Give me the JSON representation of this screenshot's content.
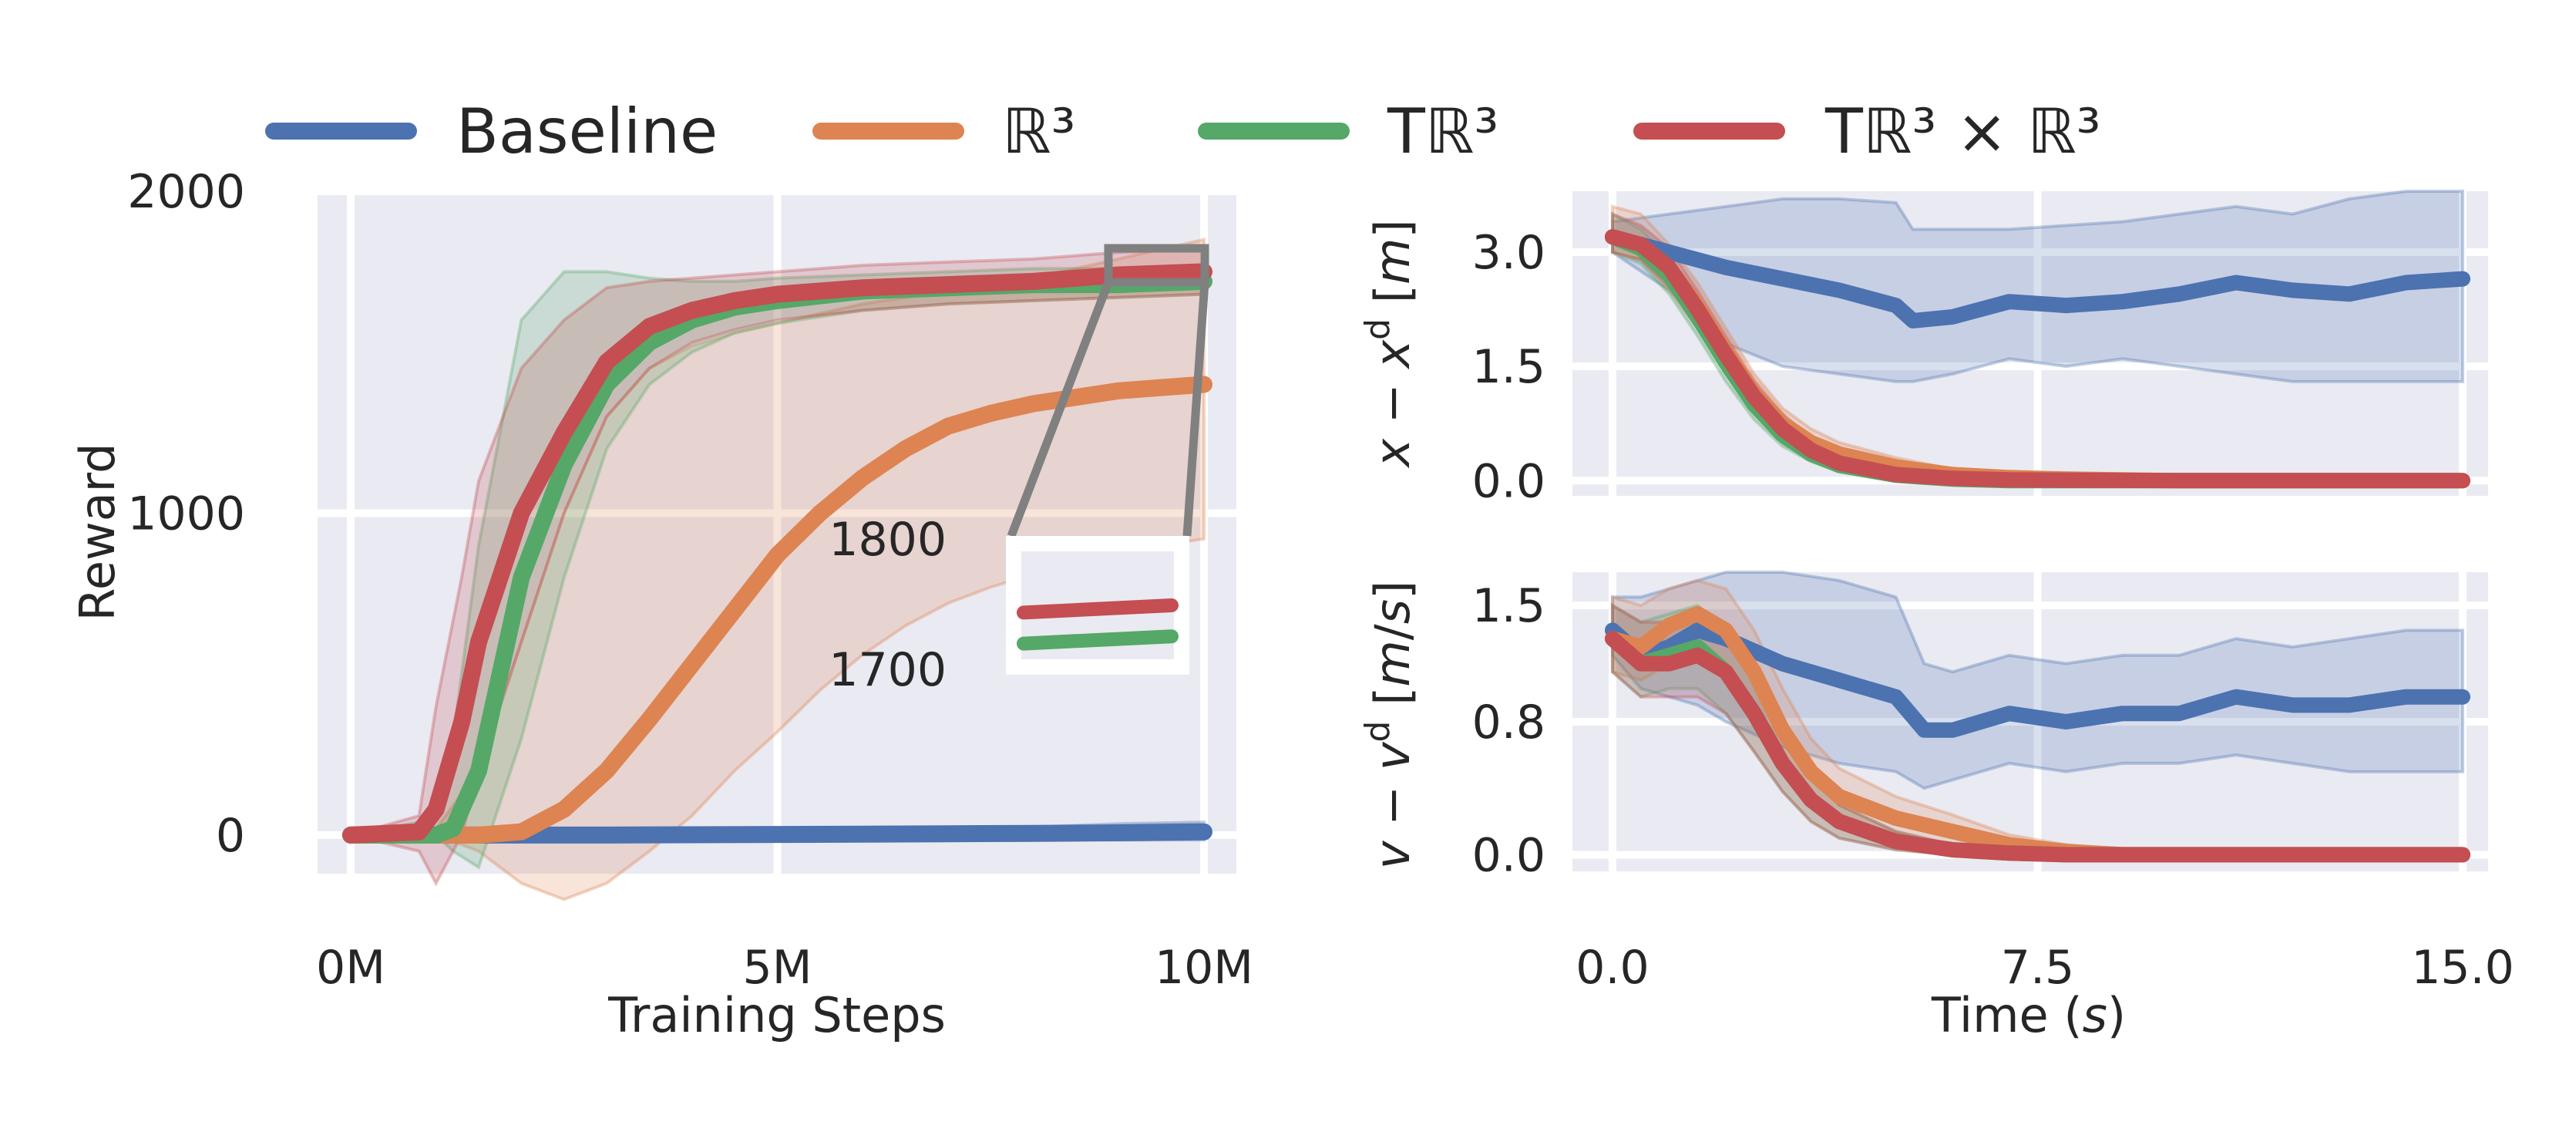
{
  "legend": {
    "placement": "top",
    "entries": [
      {
        "label": "Baseline",
        "color": "#4c72b0"
      },
      {
        "label": "ℝ³",
        "color": "#dd8452"
      },
      {
        "label": "Tℝ³",
        "color": "#55a868"
      },
      {
        "label": "Tℝ³ × ℝ³",
        "color": "#c44e52"
      }
    ]
  },
  "chart_data": [
    {
      "type": "line",
      "xlabel": "Training Steps",
      "ylabel": "Reward",
      "xlim": [
        0,
        10
      ],
      "ylim": [
        -120,
        2000
      ],
      "xticks": [
        0,
        5,
        10
      ],
      "xtick_labels": [
        "0M",
        "5M",
        "10M"
      ],
      "yticks": [
        0,
        1000,
        2000
      ],
      "ytick_labels": [
        "0",
        "1000",
        "2000"
      ],
      "grid": true,
      "series": [
        {
          "name": "Baseline",
          "color": "#4c72b0",
          "x": [
            0,
            1,
            2,
            3,
            4,
            5,
            6,
            7,
            8,
            9,
            10
          ],
          "y": [
            0,
            0,
            0,
            0,
            1,
            2,
            3,
            4,
            5,
            7,
            10
          ],
          "lower": [
            -5,
            -5,
            -5,
            -5,
            -5,
            -5,
            -5,
            -10,
            -10,
            -15,
            -15
          ],
          "upper": [
            5,
            5,
            5,
            5,
            8,
            10,
            15,
            20,
            25,
            35,
            40
          ]
        },
        {
          "name": "ℝ³",
          "color": "#dd8452",
          "x": [
            0,
            1,
            1.5,
            2,
            2.5,
            3,
            3.5,
            4,
            4.5,
            5,
            5.5,
            6,
            6.5,
            7,
            7.5,
            8,
            8.5,
            9,
            9.5,
            10
          ],
          "y": [
            0,
            0,
            0,
            10,
            80,
            200,
            360,
            530,
            700,
            870,
            1000,
            1110,
            1200,
            1270,
            1310,
            1340,
            1360,
            1380,
            1390,
            1400
          ],
          "lower": [
            0,
            0,
            -50,
            -150,
            -200,
            -150,
            -50,
            60,
            200,
            320,
            450,
            560,
            650,
            720,
            770,
            810,
            850,
            880,
            900,
            920
          ],
          "upper": [
            0,
            20,
            200,
            600,
            1000,
            1300,
            1450,
            1520,
            1560,
            1590,
            1620,
            1650,
            1670,
            1690,
            1710,
            1730,
            1760,
            1790,
            1820,
            1850
          ]
        },
        {
          "name": "Tℝ³",
          "color": "#55a868",
          "x": [
            0,
            1,
            1.2,
            1.5,
            2,
            2.5,
            3,
            3.5,
            4,
            4.5,
            5,
            6,
            7,
            8,
            9,
            10
          ],
          "y": [
            0,
            0,
            20,
            200,
            800,
            1150,
            1400,
            1530,
            1600,
            1640,
            1660,
            1690,
            1700,
            1710,
            1710,
            1720
          ],
          "lower": [
            0,
            0,
            -50,
            -100,
            300,
            800,
            1200,
            1400,
            1500,
            1560,
            1590,
            1630,
            1650,
            1660,
            1670,
            1680
          ],
          "upper": [
            0,
            50,
            300,
            900,
            1600,
            1750,
            1750,
            1730,
            1720,
            1720,
            1730,
            1740,
            1750,
            1760,
            1760,
            1770
          ]
        },
        {
          "name": "Tℝ³ × ℝ³",
          "color": "#c44e52",
          "x": [
            0,
            0.8,
            1,
            1.3,
            1.5,
            2,
            2.5,
            3,
            3.5,
            4,
            4.5,
            5,
            6,
            7,
            8,
            9,
            10
          ],
          "y": [
            0,
            10,
            80,
            350,
            600,
            1000,
            1250,
            1470,
            1580,
            1630,
            1660,
            1680,
            1700,
            1710,
            1720,
            1740,
            1750
          ],
          "lower": [
            0,
            -50,
            -150,
            0,
            200,
            600,
            1000,
            1300,
            1450,
            1530,
            1570,
            1600,
            1630,
            1650,
            1660,
            1670,
            1680
          ],
          "upper": [
            0,
            60,
            400,
            800,
            1100,
            1450,
            1600,
            1700,
            1720,
            1730,
            1740,
            1750,
            1770,
            1780,
            1790,
            1810,
            1820
          ]
        }
      ],
      "inset": {
        "xlim": [
          9.3,
          10
        ],
        "ylim": [
          1700,
          1800
        ],
        "ytick_labels": [
          "1800",
          "1700"
        ]
      }
    },
    {
      "type": "line",
      "xlabel": "",
      "ylabel": "x − x^d [m]",
      "xlim": [
        0,
        15
      ],
      "ylim": [
        -0.2,
        3.8
      ],
      "yticks": [
        0,
        1.5,
        3
      ],
      "ytick_labels": [
        "0.0",
        "1.5",
        "3.0"
      ],
      "grid": true,
      "series": [
        {
          "name": "Baseline",
          "color": "#4c72b0",
          "x": [
            0,
            1,
            2,
            3,
            4,
            5,
            5.3,
            6,
            7,
            8,
            9,
            10,
            11,
            12,
            13,
            14,
            15
          ],
          "y": [
            3.2,
            3.0,
            2.8,
            2.65,
            2.5,
            2.3,
            2.1,
            2.15,
            2.35,
            2.3,
            2.35,
            2.45,
            2.6,
            2.5,
            2.45,
            2.6,
            2.65
          ],
          "lower": [
            3.0,
            2.5,
            1.8,
            1.5,
            1.4,
            1.3,
            1.3,
            1.4,
            1.6,
            1.5,
            1.6,
            1.5,
            1.4,
            1.3,
            1.3,
            1.3,
            1.3
          ],
          "upper": [
            3.4,
            3.5,
            3.6,
            3.7,
            3.7,
            3.65,
            3.3,
            3.3,
            3.3,
            3.35,
            3.4,
            3.5,
            3.6,
            3.5,
            3.7,
            3.8,
            3.8
          ]
        },
        {
          "name": "ℝ³",
          "color": "#dd8452",
          "x": [
            0,
            0.5,
            1,
            1.5,
            2,
            2.5,
            3,
            3.5,
            4,
            5,
            6,
            7,
            8,
            10,
            15
          ],
          "y": [
            3.2,
            3.1,
            2.8,
            2.3,
            1.7,
            1.15,
            0.75,
            0.5,
            0.35,
            0.18,
            0.08,
            0.04,
            0.02,
            0.0,
            0.0
          ],
          "lower": [
            3.0,
            2.9,
            2.5,
            2.0,
            1.4,
            0.9,
            0.55,
            0.35,
            0.22,
            0.08,
            0.03,
            0.01,
            0.0,
            0.0,
            0.0
          ],
          "upper": [
            3.6,
            3.5,
            3.1,
            2.6,
            2.0,
            1.4,
            0.95,
            0.68,
            0.5,
            0.3,
            0.15,
            0.08,
            0.04,
            0.02,
            0.02
          ]
        },
        {
          "name": "Tℝ³",
          "color": "#55a868",
          "x": [
            0,
            0.5,
            1,
            1.5,
            2,
            2.5,
            3,
            3.5,
            4,
            5,
            6,
            7,
            10,
            15
          ],
          "y": [
            3.2,
            3.05,
            2.7,
            2.15,
            1.55,
            1.0,
            0.6,
            0.35,
            0.2,
            0.07,
            0.02,
            0.0,
            0.0,
            0.0
          ],
          "lower": [
            3.0,
            2.85,
            2.45,
            1.9,
            1.3,
            0.8,
            0.45,
            0.25,
            0.12,
            0.03,
            0.0,
            0.0,
            0.0,
            0.0
          ],
          "upper": [
            3.5,
            3.3,
            2.95,
            2.4,
            1.8,
            1.2,
            0.78,
            0.48,
            0.3,
            0.12,
            0.05,
            0.02,
            0.01,
            0.01
          ]
        },
        {
          "name": "Tℝ³ × ℝ³",
          "color": "#c44e52",
          "x": [
            0,
            0.5,
            1,
            1.5,
            2,
            2.5,
            3,
            3.5,
            4,
            5,
            6,
            7,
            10,
            15
          ],
          "y": [
            3.2,
            3.1,
            2.8,
            2.25,
            1.65,
            1.1,
            0.68,
            0.4,
            0.23,
            0.08,
            0.03,
            0.01,
            0.0,
            0.0
          ],
          "lower": [
            3.0,
            2.9,
            2.55,
            2.0,
            1.4,
            0.88,
            0.5,
            0.28,
            0.14,
            0.04,
            0.01,
            0.0,
            0.0,
            0.0
          ],
          "upper": [
            3.5,
            3.35,
            3.05,
            2.5,
            1.9,
            1.32,
            0.88,
            0.55,
            0.34,
            0.14,
            0.06,
            0.03,
            0.01,
            0.01
          ]
        }
      ]
    },
    {
      "type": "line",
      "xlabel": "Time (s)",
      "ylabel": "v − v^d [m/s]",
      "xlim": [
        0,
        15
      ],
      "ylim": [
        -0.1,
        1.7
      ],
      "xticks": [
        0,
        7.5,
        15
      ],
      "xtick_labels": [
        "0.0",
        "7.5",
        "15.0"
      ],
      "yticks": [
        0,
        0.8,
        1.5
      ],
      "ytick_labels": [
        "0.0",
        "0.8",
        "1.5"
      ],
      "grid": true,
      "series": [
        {
          "name": "Baseline",
          "color": "#4c72b0",
          "x": [
            0,
            0.5,
            1,
            1.5,
            2,
            3,
            4,
            5,
            5.5,
            6,
            7,
            8,
            9,
            10,
            11,
            12,
            13,
            14,
            15
          ],
          "y": [
            1.35,
            1.2,
            1.25,
            1.35,
            1.3,
            1.15,
            1.05,
            0.95,
            0.75,
            0.75,
            0.85,
            0.8,
            0.85,
            0.85,
            0.95,
            0.9,
            0.9,
            0.95,
            0.95
          ],
          "lower": [
            1.2,
            1.0,
            0.95,
            0.9,
            0.8,
            0.65,
            0.55,
            0.5,
            0.4,
            0.45,
            0.55,
            0.5,
            0.55,
            0.55,
            0.6,
            0.55,
            0.5,
            0.5,
            0.5
          ],
          "upper": [
            1.55,
            1.55,
            1.6,
            1.65,
            1.7,
            1.7,
            1.65,
            1.55,
            1.15,
            1.1,
            1.2,
            1.15,
            1.2,
            1.2,
            1.3,
            1.25,
            1.3,
            1.35,
            1.35
          ]
        },
        {
          "name": "ℝ³",
          "color": "#dd8452",
          "x": [
            0,
            0.5,
            1,
            1.5,
            2,
            2.5,
            3,
            3.5,
            4,
            5,
            6,
            7,
            8,
            9,
            10,
            15
          ],
          "y": [
            1.3,
            1.25,
            1.38,
            1.45,
            1.35,
            1.1,
            0.75,
            0.5,
            0.35,
            0.22,
            0.14,
            0.06,
            0.02,
            0.0,
            0.0,
            0.0
          ],
          "lower": [
            1.1,
            1.05,
            1.15,
            1.2,
            1.1,
            0.85,
            0.55,
            0.35,
            0.22,
            0.12,
            0.06,
            0.02,
            0.0,
            0.0,
            0.0,
            0.0
          ],
          "upper": [
            1.55,
            1.5,
            1.6,
            1.65,
            1.6,
            1.35,
            1.0,
            0.7,
            0.52,
            0.35,
            0.24,
            0.12,
            0.06,
            0.03,
            0.02,
            0.02
          ]
        },
        {
          "name": "Tℝ³",
          "color": "#55a868",
          "x": [
            0,
            0.5,
            1,
            1.5,
            2,
            2.5,
            3,
            3.5,
            4,
            5,
            6,
            7,
            8,
            15
          ],
          "y": [
            1.3,
            1.15,
            1.2,
            1.25,
            1.1,
            0.85,
            0.55,
            0.33,
            0.2,
            0.08,
            0.03,
            0.01,
            0.0,
            0.0
          ],
          "lower": [
            1.1,
            0.95,
            1.0,
            1.0,
            0.85,
            0.62,
            0.38,
            0.2,
            0.1,
            0.03,
            0.0,
            0.0,
            0.0,
            0.0
          ],
          "upper": [
            1.5,
            1.4,
            1.45,
            1.5,
            1.35,
            1.1,
            0.75,
            0.48,
            0.3,
            0.14,
            0.06,
            0.02,
            0.01,
            0.01
          ]
        },
        {
          "name": "Tℝ³ × ℝ³",
          "color": "#c44e52",
          "x": [
            0,
            0.5,
            1,
            1.5,
            2,
            2.5,
            3,
            3.5,
            4,
            5,
            6,
            7,
            8,
            15
          ],
          "y": [
            1.3,
            1.15,
            1.15,
            1.2,
            1.1,
            0.85,
            0.55,
            0.33,
            0.2,
            0.08,
            0.03,
            0.01,
            0.0,
            0.0
          ],
          "lower": [
            1.1,
            0.95,
            0.95,
            0.95,
            0.85,
            0.62,
            0.38,
            0.2,
            0.1,
            0.03,
            0.0,
            0.0,
            0.0,
            0.0
          ],
          "upper": [
            1.5,
            1.4,
            1.4,
            1.45,
            1.35,
            1.1,
            0.75,
            0.48,
            0.3,
            0.14,
            0.06,
            0.02,
            0.01,
            0.01
          ]
        }
      ]
    }
  ]
}
